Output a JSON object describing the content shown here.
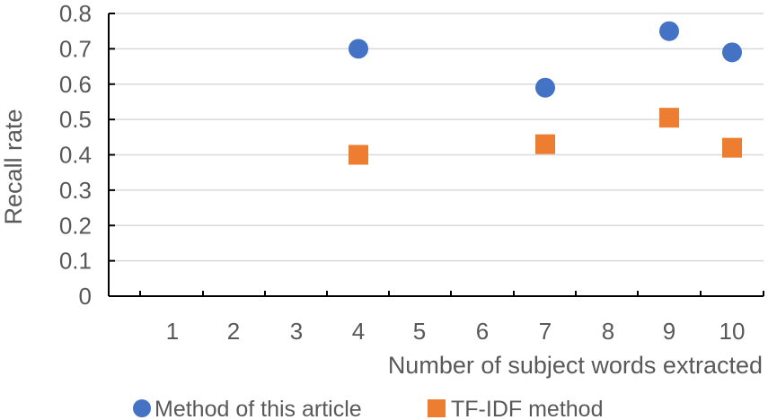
{
  "chart_data": {
    "type": "scatter",
    "title": "",
    "xlabel": "Number of subject words extracted",
    "ylabel": "Recall rate",
    "categories": [
      "1",
      "2",
      "3",
      "4",
      "5",
      "6",
      "7",
      "8",
      "9",
      "10"
    ],
    "ylim": [
      0,
      0.8
    ],
    "yticks": [
      "0",
      "0.1",
      "0.2",
      "0.3",
      "0.4",
      "0.5",
      "0.6",
      "0.7",
      "0.8"
    ],
    "grid": true,
    "legend_position": "bottom",
    "series": [
      {
        "name": "Method of this article",
        "marker": "circle",
        "color": "#4472C4",
        "points": [
          {
            "x": 4,
            "y": 0.7
          },
          {
            "x": 7,
            "y": 0.59
          },
          {
            "x": 9,
            "y": 0.75
          },
          {
            "x": 10,
            "y": 0.69
          }
        ]
      },
      {
        "name": "TF-IDF method",
        "marker": "square",
        "color": "#ED7D31",
        "points": [
          {
            "x": 4,
            "y": 0.4
          },
          {
            "x": 7,
            "y": 0.43
          },
          {
            "x": 9,
            "y": 0.505
          },
          {
            "x": 10,
            "y": 0.42
          }
        ]
      }
    ]
  }
}
